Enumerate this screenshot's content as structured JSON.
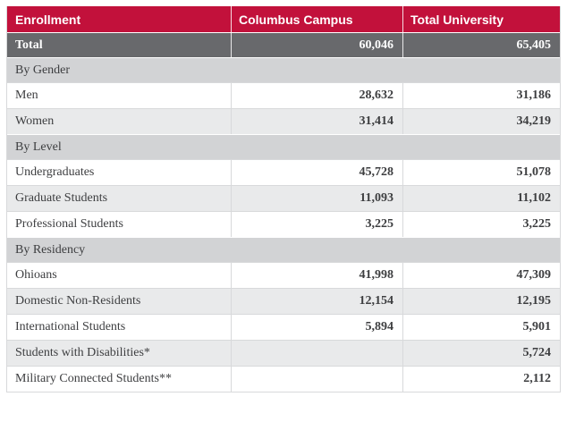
{
  "table": {
    "header": {
      "enrollment": "Enrollment",
      "columbus": "Columbus Campus",
      "university": "Total University"
    },
    "rows": [
      {
        "kind": "total",
        "label": "Total",
        "columbus": "60,046",
        "university": "65,405"
      },
      {
        "kind": "section",
        "label": "By Gender"
      },
      {
        "kind": "data",
        "label": "Men",
        "columbus": "28,632",
        "university": "31,186"
      },
      {
        "kind": "data",
        "label": "Women",
        "columbus": "31,414",
        "university": "34,219"
      },
      {
        "kind": "section",
        "label": "By Level"
      },
      {
        "kind": "data",
        "label": "Undergraduates",
        "columbus": "45,728",
        "university": "51,078"
      },
      {
        "kind": "data",
        "label": "Graduate Students",
        "columbus": "11,093",
        "university": "11,102"
      },
      {
        "kind": "data",
        "label": "Professional Students",
        "columbus": "3,225",
        "university": "3,225"
      },
      {
        "kind": "section",
        "label": "By Residency"
      },
      {
        "kind": "data",
        "label": "Ohioans",
        "columbus": "41,998",
        "university": "47,309"
      },
      {
        "kind": "data",
        "label": "Domestic Non-Residents",
        "columbus": "12,154",
        "university": "12,195"
      },
      {
        "kind": "data",
        "label": "International Students",
        "columbus": "5,894",
        "university": "5,901"
      },
      {
        "kind": "data",
        "label": "Students with Disabilities*",
        "columbus": "",
        "university": "5,724"
      },
      {
        "kind": "data",
        "label": "Military Connected Students**",
        "columbus": "",
        "university": "2,112"
      }
    ]
  },
  "chart_data": {
    "type": "table",
    "title": "Enrollment",
    "columns": [
      "Enrollment",
      "Columbus Campus",
      "Total University"
    ],
    "rows": [
      {
        "section": null,
        "label": "Total",
        "columbus_campus": 60046,
        "total_university": 65405
      },
      {
        "section": "By Gender",
        "label": "Men",
        "columbus_campus": 28632,
        "total_university": 31186
      },
      {
        "section": "By Gender",
        "label": "Women",
        "columbus_campus": 31414,
        "total_university": 34219
      },
      {
        "section": "By Level",
        "label": "Undergraduates",
        "columbus_campus": 45728,
        "total_university": 51078
      },
      {
        "section": "By Level",
        "label": "Graduate Students",
        "columbus_campus": 11093,
        "total_university": 11102
      },
      {
        "section": "By Level",
        "label": "Professional Students",
        "columbus_campus": 3225,
        "total_university": 3225
      },
      {
        "section": "By Residency",
        "label": "Ohioans",
        "columbus_campus": 41998,
        "total_university": 47309
      },
      {
        "section": "By Residency",
        "label": "Domestic Non-Residents",
        "columbus_campus": 12154,
        "total_university": 12195
      },
      {
        "section": "By Residency",
        "label": "International Students",
        "columbus_campus": 5894,
        "total_university": 5901
      },
      {
        "section": "By Residency",
        "label": "Students with Disabilities*",
        "columbus_campus": null,
        "total_university": 5724
      },
      {
        "section": "By Residency",
        "label": "Military Connected Students**",
        "columbus_campus": null,
        "total_university": 2112
      }
    ]
  },
  "colors": {
    "scarlet": "#c2113b",
    "total_row": "#68696c",
    "section_row": "#d2d3d5",
    "alt_row": "#e9eaeb",
    "border": "#d8d9db",
    "text": "#3d3e40"
  }
}
